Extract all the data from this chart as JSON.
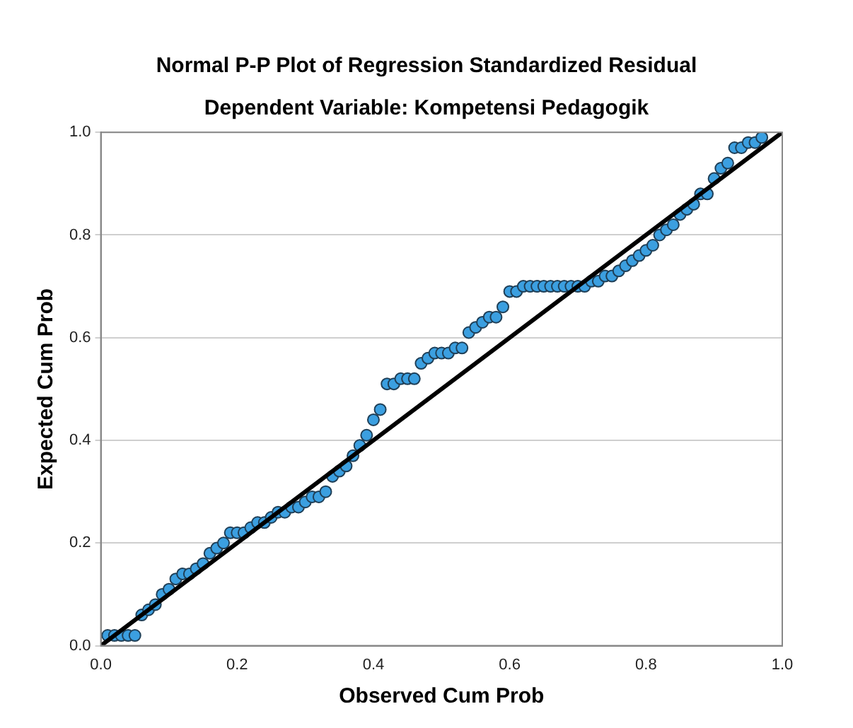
{
  "chart_data": {
    "type": "scatter",
    "title": "Normal P-P Plot of Regression Standardized Residual",
    "subtitle": "Dependent Variable: Kompetensi Pedagogik",
    "xlabel": "Observed Cum Prob",
    "ylabel": "Expected Cum Prob",
    "xlim": [
      0,
      1
    ],
    "ylim": [
      0,
      1
    ],
    "xticks": [
      {
        "value": 0,
        "label": "0.0"
      },
      {
        "value": 0.2,
        "label": "0.2"
      },
      {
        "value": 0.4,
        "label": "0.4"
      },
      {
        "value": 0.6,
        "label": "0.6"
      },
      {
        "value": 0.8,
        "label": "0.8"
      },
      {
        "value": 1,
        "label": "1.0"
      }
    ],
    "yticks": [
      {
        "value": 0,
        "label": "0.0"
      },
      {
        "value": 0.2,
        "label": "0.2"
      },
      {
        "value": 0.4,
        "label": "0.4"
      },
      {
        "value": 0.6,
        "label": "0.6"
      },
      {
        "value": 0.8,
        "label": "0.8"
      },
      {
        "value": 1,
        "label": "1.0"
      }
    ],
    "grid": "y",
    "legend": false,
    "marker": "circle",
    "series": [
      {
        "type": "scatter",
        "color": "#3b9fe0",
        "x": [
          0.01,
          0.02,
          0.03,
          0.04,
          0.05,
          0.06,
          0.07,
          0.08,
          0.09,
          0.1,
          0.11,
          0.12,
          0.13,
          0.14,
          0.15,
          0.16,
          0.17,
          0.18,
          0.19,
          0.2,
          0.21,
          0.22,
          0.23,
          0.24,
          0.25,
          0.26,
          0.27,
          0.28,
          0.29,
          0.3,
          0.31,
          0.32,
          0.33,
          0.34,
          0.35,
          0.36,
          0.37,
          0.38,
          0.39,
          0.4,
          0.41,
          0.42,
          0.43,
          0.44,
          0.45,
          0.46,
          0.47,
          0.48,
          0.49,
          0.5,
          0.51,
          0.52,
          0.53,
          0.54,
          0.55,
          0.56,
          0.57,
          0.58,
          0.59,
          0.6,
          0.61,
          0.62,
          0.63,
          0.64,
          0.65,
          0.66,
          0.67,
          0.68,
          0.69,
          0.7,
          0.71,
          0.72,
          0.73,
          0.74,
          0.75,
          0.76,
          0.77,
          0.78,
          0.79,
          0.8,
          0.81,
          0.82,
          0.83,
          0.84,
          0.85,
          0.86,
          0.87,
          0.88,
          0.89,
          0.9,
          0.91,
          0.92,
          0.93,
          0.94,
          0.95,
          0.96,
          0.97
        ],
        "values": [
          0.02,
          0.02,
          0.02,
          0.02,
          0.02,
          0.06,
          0.07,
          0.08,
          0.1,
          0.11,
          0.13,
          0.14,
          0.14,
          0.15,
          0.16,
          0.18,
          0.19,
          0.2,
          0.22,
          0.22,
          0.22,
          0.23,
          0.24,
          0.24,
          0.25,
          0.26,
          0.26,
          0.27,
          0.27,
          0.28,
          0.29,
          0.29,
          0.3,
          0.33,
          0.34,
          0.35,
          0.37,
          0.39,
          0.41,
          0.44,
          0.46,
          0.51,
          0.51,
          0.52,
          0.52,
          0.52,
          0.55,
          0.56,
          0.57,
          0.57,
          0.57,
          0.58,
          0.58,
          0.61,
          0.62,
          0.63,
          0.64,
          0.64,
          0.66,
          0.69,
          0.69,
          0.7,
          0.7,
          0.7,
          0.7,
          0.7,
          0.7,
          0.7,
          0.7,
          0.7,
          0.7,
          0.71,
          0.71,
          0.72,
          0.72,
          0.73,
          0.74,
          0.75,
          0.76,
          0.77,
          0.78,
          0.8,
          0.81,
          0.82,
          0.84,
          0.85,
          0.86,
          0.88,
          0.88,
          0.91,
          0.93,
          0.94,
          0.97,
          0.97,
          0.98,
          0.98,
          0.99
        ]
      },
      {
        "type": "line",
        "color": "#000000",
        "x": [
          0,
          1
        ],
        "values": [
          0,
          1
        ],
        "marker": "none",
        "line_style": "solid"
      }
    ]
  }
}
